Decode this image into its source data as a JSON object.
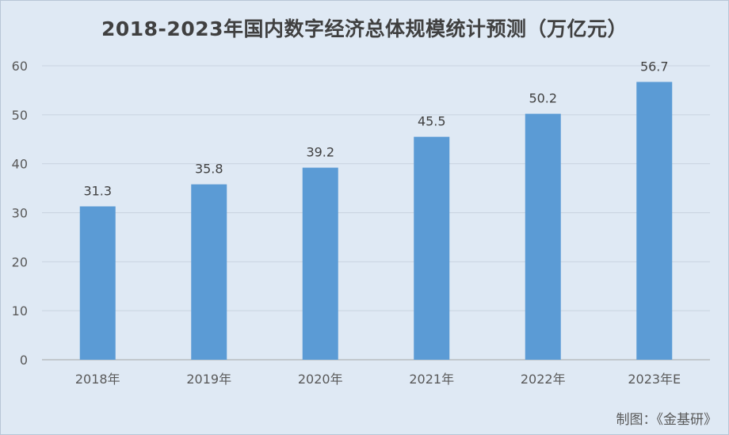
{
  "chart_data": {
    "type": "bar",
    "title": "2018-2023年国内数字经济总体规模统计预测（万亿元）",
    "categories": [
      "2018年",
      "2019年",
      "2020年",
      "2021年",
      "2022年",
      "2023年E"
    ],
    "values": [
      31.3,
      35.8,
      39.2,
      45.5,
      50.2,
      56.7
    ],
    "data_labels": [
      "31.3",
      "35.8",
      "39.2",
      "45.5",
      "50.2",
      "56.7"
    ],
    "ylim": [
      0,
      60
    ],
    "yticks": [
      0,
      10,
      20,
      30,
      40,
      50,
      60
    ],
    "ytick_labels": [
      "0",
      "10",
      "20",
      "30",
      "40",
      "50",
      "60"
    ],
    "xlabel": "",
    "ylabel": "",
    "grid": true,
    "legend": "none",
    "bar_color": "#5b9bd5"
  },
  "footer": {
    "credit": "制图：《金基研》"
  }
}
